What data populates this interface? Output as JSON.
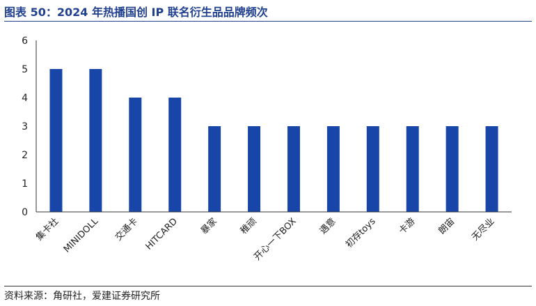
{
  "header": {
    "title": "图表 50：2024 年热播国创 IP 联名衍生品品牌频次"
  },
  "footer": {
    "source": "资料来源：角研社，爱建证券研究所"
  },
  "colors": {
    "bar": "#1846a8",
    "title": "#1f3f8f",
    "axis": "#333333"
  },
  "chart_data": {
    "type": "bar",
    "categories": [
      "集卡社",
      "MINIDOLL",
      "交通卡",
      "HITCARD",
      "暴家",
      "稚顽",
      "开心一下BOX",
      "遇意",
      "初存toys",
      "卡游",
      "朗宙",
      "无尽业"
    ],
    "values": [
      5,
      5,
      4,
      4,
      3,
      3,
      3,
      3,
      3,
      3,
      3,
      3
    ],
    "ylim": [
      0,
      6
    ],
    "yticks": [
      "0",
      "1",
      "2",
      "3",
      "4",
      "5",
      "6"
    ],
    "grid": false,
    "legend": "none"
  }
}
